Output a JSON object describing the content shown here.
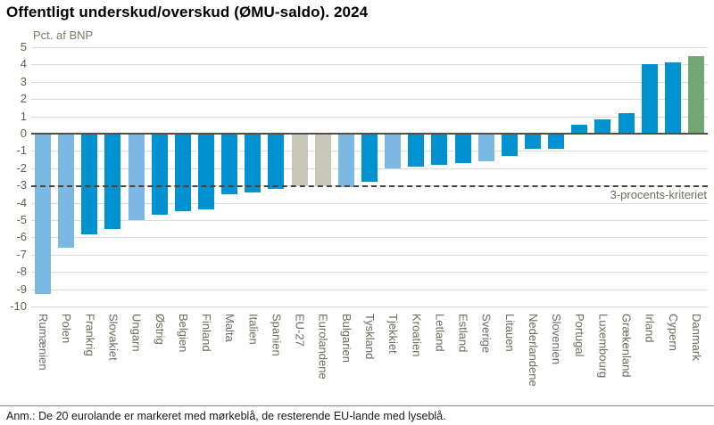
{
  "header": {
    "title": "Offentligt underskud/overskud (ØMU-saldo). 2024"
  },
  "chart_data": {
    "type": "bar",
    "title": "Offentligt underskud/overskud (ØMU-saldo). 2024",
    "unit_label": "Pct. af BNP",
    "xlabel": "",
    "ylabel": "Pct. af BNP",
    "ylim": [
      -10,
      5
    ],
    "ytick_step": 1,
    "yticks": [
      5,
      4,
      3,
      2,
      1,
      0,
      -1,
      -2,
      -3,
      -4,
      -5,
      -6,
      -7,
      -8,
      -9,
      -10
    ],
    "grid": true,
    "legend_position": "none",
    "threshold": {
      "value": -3,
      "label": "3-procents-kriteriet"
    },
    "categories": [
      "Rumænien",
      "Polen",
      "Frankrig",
      "Slovakiet",
      "Ungarn",
      "Østrig",
      "Belgien",
      "Finland",
      "Malta",
      "Italien",
      "Spanien",
      "EU-27",
      "Eurolandene",
      "Bulgarien",
      "Tyskland",
      "Tjekkiet",
      "Kroatien",
      "Letland",
      "Estland",
      "Sverige",
      "Litauen",
      "Nederlandene",
      "Slovenien",
      "Portugal",
      "Luxembourg",
      "Grækenland",
      "Irland",
      "Cypern",
      "Danmark"
    ],
    "values": [
      -9.3,
      -6.6,
      -5.8,
      -5.5,
      -5.0,
      -4.7,
      -4.5,
      -4.4,
      -3.5,
      -3.4,
      -3.2,
      -3.0,
      -3.0,
      -3.1,
      -2.8,
      -2.0,
      -1.9,
      -1.8,
      -1.7,
      -1.6,
      -1.3,
      -0.9,
      -0.9,
      0.5,
      0.8,
      1.2,
      4.0,
      4.1,
      4.5
    ],
    "groups": [
      "non_euro",
      "non_euro",
      "euro",
      "euro",
      "non_euro",
      "euro",
      "euro",
      "euro",
      "euro",
      "euro",
      "euro",
      "aggregate",
      "aggregate",
      "non_euro",
      "euro",
      "non_euro",
      "euro",
      "euro",
      "euro",
      "non_euro",
      "euro",
      "euro",
      "euro",
      "euro",
      "euro",
      "euro",
      "euro",
      "euro",
      "denmark"
    ],
    "colors": {
      "euro": "#0092d0",
      "non_euro": "#7cb8e4",
      "aggregate": "#c8c7b9",
      "denmark": "#74a873",
      "gridline": "#dcdbd3",
      "zero_line": "#514f47",
      "threshold_line": "#45443e"
    }
  },
  "footer": {
    "note": "Anm.: De 20 eurolande er markeret med mørkeblå, de resterende EU-lande med lyseblå."
  }
}
